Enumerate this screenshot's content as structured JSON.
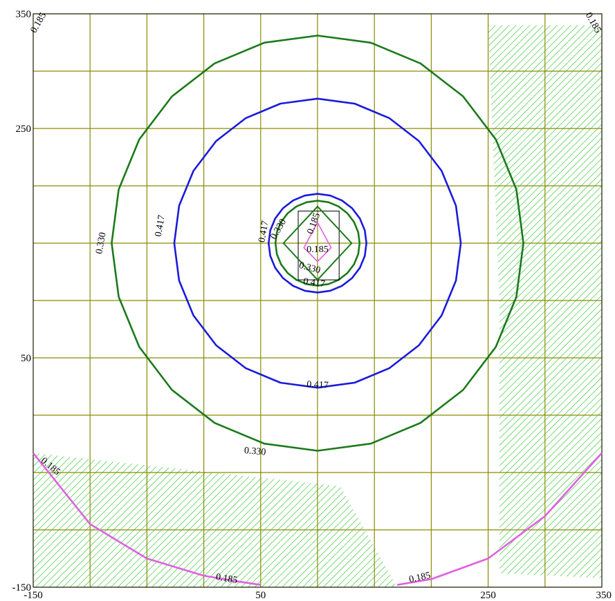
{
  "chart_data": {
    "type": "contour",
    "xlim": [
      -150,
      350
    ],
    "ylim": [
      -150,
      350
    ],
    "x_ticks": [
      -150,
      50,
      250,
      350
    ],
    "y_ticks": [
      350,
      250,
      50,
      -150
    ],
    "grid": true,
    "grid_spacing": 50,
    "center": [
      100,
      150
    ],
    "colors": {
      "grid": "#8a8a00",
      "c_0_417": "#1a1adc",
      "c_0_330": "#1a7a1a",
      "c_0_185": "#e060e0",
      "hatch": "#3cc83c"
    },
    "contours": [
      {
        "level": "0.330",
        "color": "#1a7a1a",
        "shape": "circle",
        "radius": 181
      },
      {
        "level": "0.417",
        "color": "#1a1adc",
        "shape": "circle",
        "radius": 126
      },
      {
        "level": "0.417",
        "color": "#1a1adc",
        "shape": "circle",
        "radius": 43
      },
      {
        "level": "0.330",
        "color": "#1a7a1a",
        "shape": "circle",
        "radius": 37
      },
      {
        "level": "0.185",
        "color": "#e060e0",
        "shape": "arc",
        "points": [
          [
            -150,
            -33
          ],
          [
            -100,
            -95
          ],
          [
            -50,
            -125
          ],
          [
            0,
            -140
          ],
          [
            30,
            -145
          ],
          [
            50,
            -148
          ]
        ]
      },
      {
        "level": "0.185",
        "color": "#e060e0",
        "shape": "arc",
        "points": [
          [
            170,
            -148
          ],
          [
            200,
            -143
          ],
          [
            250,
            -125
          ],
          [
            300,
            -88
          ],
          [
            350,
            -33
          ]
        ]
      }
    ],
    "hatched_regions": [
      [
        [
          250,
          340
        ],
        [
          350,
          340
        ],
        [
          350,
          -142
        ],
        [
          260,
          -138
        ],
        [
          260,
          100
        ]
      ],
      [
        [
          -150,
          -33
        ],
        [
          120,
          -62
        ],
        [
          170,
          -150
        ],
        [
          -150,
          -150
        ]
      ]
    ],
    "contour_labels": [
      {
        "text": "0.330",
        "x": -90,
        "y": 150,
        "angle": -80
      },
      {
        "text": "0.417",
        "x": -38,
        "y": 165,
        "angle": -80
      },
      {
        "text": "0.417",
        "x": 100,
        "y": 26,
        "angle": 3
      },
      {
        "text": "0.330",
        "x": 45,
        "y": -32,
        "angle": 5
      },
      {
        "text": "0.417",
        "x": 53,
        "y": 160,
        "angle": -80
      },
      {
        "text": "0.330",
        "x": 66,
        "y": 162,
        "angle": -60
      },
      {
        "text": "0.185",
        "x": 97,
        "y": 167,
        "angle": -70
      },
      {
        "text": "0.185",
        "x": 100,
        "y": 144,
        "angle": 0
      },
      {
        "text": "0.330",
        "x": 93,
        "y": 128,
        "angle": 15
      },
      {
        "text": "0.417",
        "x": 97,
        "y": 115,
        "angle": 8
      },
      {
        "text": "0.185",
        "x": -135,
        "y": -45,
        "angle": 40
      },
      {
        "text": "0.185",
        "x": 20,
        "y": -143,
        "angle": 10
      },
      {
        "text": "0.185",
        "x": 190,
        "y": -142,
        "angle": -12
      },
      {
        "text": "0.185",
        "x": -145,
        "y": 342,
        "angle": -60
      },
      {
        "text": "0.185",
        "x": 342,
        "y": 342,
        "angle": 60
      }
    ]
  }
}
